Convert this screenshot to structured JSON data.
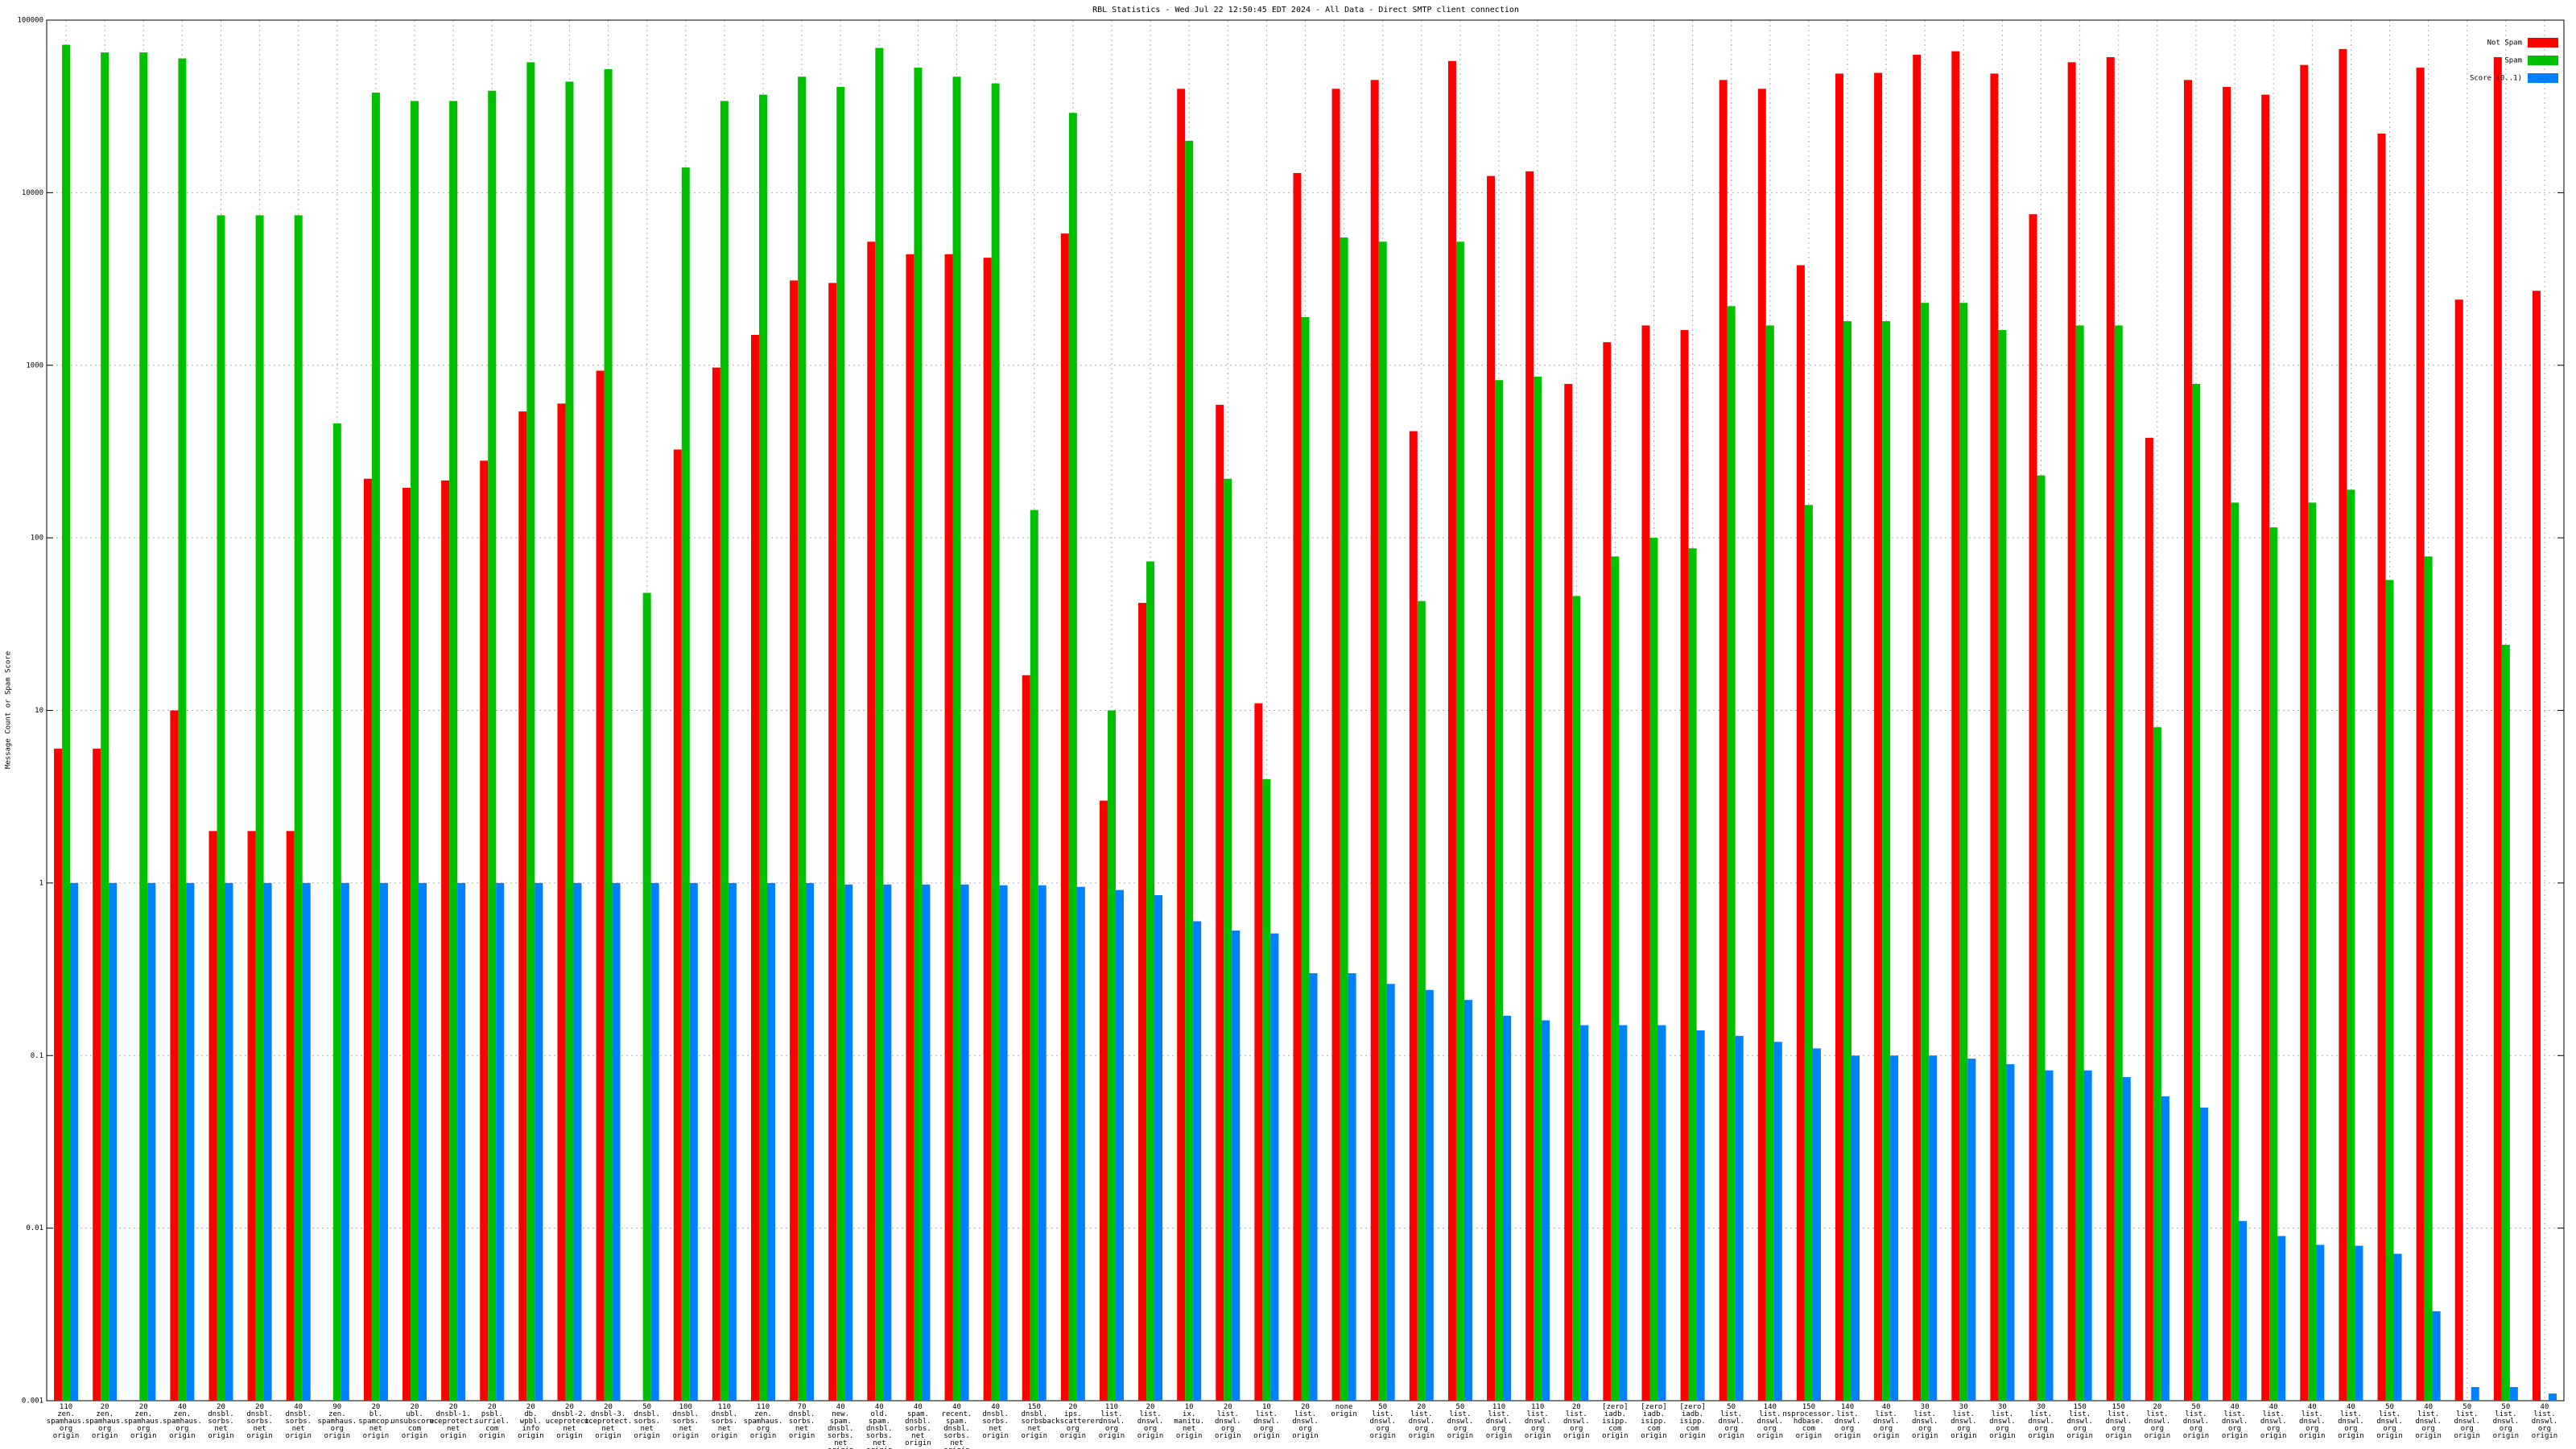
{
  "chart_data": {
    "type": "bar",
    "title": "RBL Statistics - Wed Jul 22 12:50:45 EDT 2024 - All Data - Direct SMTP client connection",
    "ylabel": "Message Count or Spam Score",
    "yscale": "log",
    "grid": true,
    "legend": "top-right",
    "ylim": [
      0.001,
      100000
    ],
    "yticks": [
      0.001,
      0.01,
      0.1,
      1,
      10,
      100,
      1000,
      10000,
      100000
    ],
    "categories": [
      [
        "110",
        "zen.",
        "spamhaus.",
        "org",
        "origin"
      ],
      [
        "20",
        "zen.",
        "spamhaus.",
        "org",
        "origin"
      ],
      [
        "20",
        "zen.",
        "spamhaus.",
        "org",
        "origin"
      ],
      [
        "40",
        "zen.",
        "spamhaus.",
        "org",
        "origin"
      ],
      [
        "20",
        "dnsbl.",
        "sorbs.",
        "net",
        "origin"
      ],
      [
        "20",
        "dnsbl.",
        "sorbs.",
        "net",
        "origin"
      ],
      [
        "40",
        "dnsbl.",
        "sorbs.",
        "net",
        "origin"
      ],
      [
        "90",
        "zen.",
        "spamhaus.",
        "org",
        "origin"
      ],
      [
        "20",
        "bl.",
        "spamcop.",
        "net",
        "origin"
      ],
      [
        "20",
        "ubl.",
        "unsubscore.",
        "com",
        "origin"
      ],
      [
        "20",
        "dnsbl-1.",
        "uceprotect.",
        "net",
        "origin"
      ],
      [
        "20",
        "psbl.",
        "surriel.",
        "com",
        "origin"
      ],
      [
        "20",
        "db.",
        "wpbl.",
        "info",
        "origin"
      ],
      [
        "20",
        "dnsbl-2.",
        "uceprotect.",
        "net",
        "origin"
      ],
      [
        "20",
        "dnsbl-3.",
        "uceprotect.",
        "net",
        "origin"
      ],
      [
        "50",
        "dnsbl.",
        "sorbs.",
        "net",
        "origin"
      ],
      [
        "100",
        "dnsbl.",
        "sorbs.",
        "net",
        "origin"
      ],
      [
        "110",
        "dnsbl.",
        "sorbs.",
        "net",
        "origin"
      ],
      [
        "110",
        "zen.",
        "spamhaus.",
        "org",
        "origin"
      ],
      [
        "70",
        "dnsbl.",
        "sorbs.",
        "net",
        "origin"
      ],
      [
        "40",
        "new.",
        "spam.",
        "dnsbl.",
        "sorbs.",
        "net",
        "origin"
      ],
      [
        "40",
        "old.",
        "spam.",
        "dnsbl.",
        "sorbs.",
        "net",
        "origin"
      ],
      [
        "40",
        "spam.",
        "dnsbl.",
        "sorbs.",
        "net",
        "origin"
      ],
      [
        "40",
        "recent.",
        "spam.",
        "dnsbl.",
        "sorbs.",
        "net",
        "origin"
      ],
      [
        "40",
        "dnsbl.",
        "sorbs.",
        "net",
        "origin"
      ],
      [
        "150",
        "dnsbl.",
        "sorbs.",
        "net",
        "origin"
      ],
      [
        "20",
        "ips.",
        "backscatterer.",
        "org",
        "origin"
      ],
      [
        "110",
        "list.",
        "dnswl.",
        "org",
        "origin"
      ],
      [
        "20",
        "list.",
        "dnswl.",
        "org",
        "origin"
      ],
      [
        "10",
        "ix.",
        "manitu.",
        "net",
        "origin"
      ],
      [
        "20",
        "list.",
        "dnswl.",
        "org",
        "origin"
      ],
      [
        "10",
        "list.",
        "dnswl.",
        "org",
        "origin"
      ],
      [
        "20",
        "list.",
        "dnswl.",
        "org",
        "origin"
      ],
      [
        "none",
        "origin"
      ],
      [
        "50",
        "list.",
        "dnswl.",
        "org",
        "origin"
      ],
      [
        "20",
        "list.",
        "dnswl.",
        "org",
        "origin"
      ],
      [
        "50",
        "list.",
        "dnswl.",
        "org",
        "origin"
      ],
      [
        "110",
        "list.",
        "dnswl.",
        "org",
        "origin"
      ],
      [
        "110",
        "list.",
        "dnswl.",
        "org",
        "origin"
      ],
      [
        "20",
        "list.",
        "dnswl.",
        "org",
        "origin"
      ],
      [
        "[zero]",
        "iadb.",
        "isipp.",
        "com",
        "origin"
      ],
      [
        "[zero]",
        "iadb.",
        "isipp.",
        "com",
        "origin"
      ],
      [
        "[zero]",
        "iadb.",
        "isipp.",
        "com",
        "origin"
      ],
      [
        "50",
        "list.",
        "dnswl.",
        "org",
        "origin"
      ],
      [
        "140",
        "list.",
        "dnswl.",
        "org",
        "origin"
      ],
      [
        "150",
        "nsprocessor.",
        "hdbase.",
        "com",
        "origin"
      ],
      [
        "140",
        "list.",
        "dnswl.",
        "org",
        "origin"
      ],
      [
        "40",
        "list.",
        "dnswl.",
        "org",
        "origin"
      ],
      [
        "30",
        "list.",
        "dnswl.",
        "org",
        "origin"
      ],
      [
        "30",
        "list.",
        "dnswl.",
        "org",
        "origin"
      ],
      [
        "30",
        "list.",
        "dnswl.",
        "org",
        "origin"
      ],
      [
        "30",
        "list.",
        "dnswl.",
        "org",
        "origin"
      ],
      [
        "150",
        "list.",
        "dnswl.",
        "org",
        "origin"
      ],
      [
        "150",
        "list.",
        "dnswl.",
        "org",
        "origin"
      ],
      [
        "20",
        "list.",
        "dnswl.",
        "org",
        "origin"
      ],
      [
        "50",
        "list.",
        "dnswl.",
        "org",
        "origin"
      ],
      [
        "40",
        "list.",
        "dnswl.",
        "org",
        "origin"
      ],
      [
        "40",
        "list.",
        "dnswl.",
        "org",
        "origin"
      ],
      [
        "40",
        "list.",
        "dnswl.",
        "org",
        "origin"
      ],
      [
        "40",
        "list.",
        "dnswl.",
        "org",
        "origin"
      ],
      [
        "50",
        "list.",
        "dnswl.",
        "org",
        "origin"
      ],
      [
        "40",
        "list.",
        "dnswl.",
        "org",
        "origin"
      ],
      [
        "50",
        "list.",
        "dnswl.",
        "org",
        "origin"
      ],
      [
        "50",
        "list.",
        "dnswl.",
        "org",
        "origin"
      ],
      [
        "40",
        "list.",
        "dnswl.",
        "org",
        "origin"
      ]
    ],
    "series": [
      {
        "name": "Not Spam",
        "color": "#ff0000",
        "values": [
          6,
          6,
          null,
          10,
          2,
          2,
          2,
          null,
          220,
          195,
          215,
          280,
          540,
          600,
          930,
          null,
          325,
          970,
          1500,
          3100,
          3000,
          5200,
          4400,
          4400,
          4200,
          16,
          5800,
          3,
          42,
          40000,
          590,
          11,
          13000,
          40000,
          45000,
          415,
          58000,
          12500,
          13300,
          780,
          1360,
          1700,
          1600,
          45000,
          40000,
          3800,
          49000,
          49500,
          63000,
          66000,
          49000,
          7500,
          57000,
          61000,
          380,
          45000,
          41000,
          37000,
          55000,
          68000,
          22000,
          53000,
          2400,
          61000,
          2700
        ]
      },
      {
        "name": "Spam",
        "color": "#00c000",
        "values": [
          72000,
          65000,
          65000,
          60000,
          7400,
          7400,
          7400,
          460,
          38000,
          34000,
          34000,
          39000,
          57000,
          44000,
          52000,
          48,
          14000,
          34000,
          37000,
          47000,
          41000,
          69000,
          53000,
          47000,
          43000,
          145,
          29000,
          10,
          73,
          20000,
          220,
          4,
          1900,
          5500,
          5200,
          43,
          5200,
          820,
          860,
          46,
          78,
          100,
          87,
          2200,
          1700,
          155,
          1800,
          1800,
          2300,
          2300,
          1600,
          230,
          1700,
          1700,
          8,
          780,
          160,
          115,
          160,
          190,
          57,
          78,
          null,
          24,
          null
        ]
      },
      {
        "name": "Score (0..1)",
        "color": "#0080ff",
        "values": [
          1,
          1,
          1,
          1,
          1,
          1,
          1,
          1,
          1,
          1,
          1,
          1,
          1,
          1,
          1,
          1,
          1,
          1,
          1,
          1,
          0.98,
          0.98,
          0.98,
          0.98,
          0.97,
          0.97,
          0.95,
          0.91,
          0.85,
          0.6,
          0.53,
          0.51,
          0.3,
          0.3,
          0.26,
          0.24,
          0.21,
          0.17,
          0.16,
          0.15,
          0.15,
          0.15,
          0.14,
          0.13,
          0.12,
          0.11,
          0.1,
          0.1,
          0.1,
          0.096,
          0.089,
          0.082,
          0.082,
          0.075,
          0.058,
          0.05,
          0.011,
          0.009,
          0.008,
          0.0079,
          0.0071,
          0.0033,
          0.0012,
          0.0012,
          0.0011
        ]
      }
    ]
  }
}
